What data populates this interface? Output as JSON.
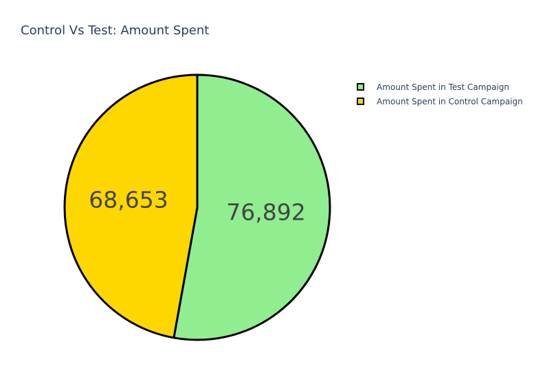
{
  "chart_data": {
    "type": "pie",
    "title": "Control Vs Test: Amount Spent",
    "labels": [
      "Amount Spent in Test Campaign",
      "Amount Spent in Control Campaign"
    ],
    "values": [
      76892,
      68653
    ],
    "value_labels": [
      "76,892",
      "68,653"
    ],
    "colors": [
      "#90ee90",
      "#ffd700"
    ],
    "border_color": "#000000",
    "legend_position": "top-right",
    "direction": "clockwise",
    "start": "top"
  }
}
